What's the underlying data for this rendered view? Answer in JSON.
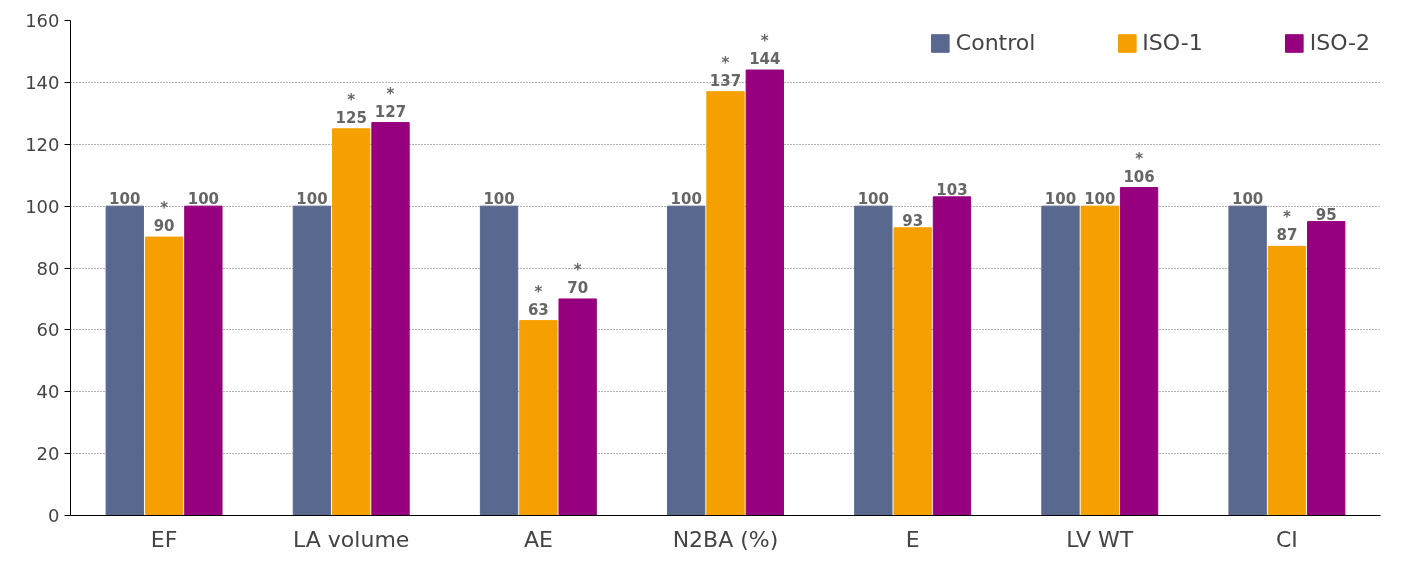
{
  "chart_data": {
    "type": "bar",
    "categories": [
      "EF",
      "LA volume",
      "AE",
      "N2BA (%)",
      "E",
      "LV WT",
      "CI"
    ],
    "series": [
      {
        "name": "Control",
        "color": "#58688f",
        "values": [
          100,
          100,
          100,
          100,
          100,
          100,
          100
        ],
        "value_labels": [
          "100",
          "100",
          "100",
          "100",
          "100",
          "100",
          "100"
        ]
      },
      {
        "name": "ISO-1",
        "color": "#f5a000",
        "values": [
          90,
          125,
          63,
          137,
          93,
          100,
          87
        ],
        "value_labels": [
          "*\n90",
          "*\n125",
          "*\n63",
          "*\n137",
          "93",
          "100",
          "*\n87"
        ]
      },
      {
        "name": "ISO-2",
        "color": "#96007e",
        "values": [
          100,
          127,
          70,
          144,
          103,
          106,
          95
        ],
        "value_labels": [
          "100",
          "*\n127",
          "*\n70",
          "*\n144",
          "103",
          "*\n106",
          "95"
        ]
      }
    ],
    "ylim": [
      0,
      160
    ],
    "yticks": [
      0,
      20,
      40,
      60,
      80,
      100,
      120,
      140,
      160
    ],
    "grid": "y",
    "legend": "top right"
  }
}
